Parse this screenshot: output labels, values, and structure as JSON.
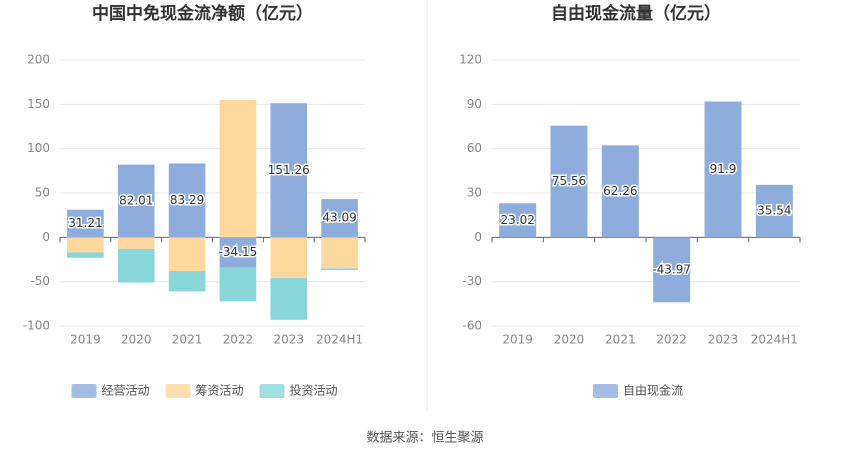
{
  "chart_data": [
    {
      "type": "bar",
      "stacked": true,
      "title": "中国中免现金流净额（亿元）",
      "categories": [
        "2019",
        "2020",
        "2021",
        "2022",
        "2023",
        "2024H1"
      ],
      "series": [
        {
          "name": "经营活动",
          "color": "#8eaddc",
          "labels": true,
          "values": [
            31.21,
            82.01,
            83.29,
            -34.15,
            151.26,
            43.09
          ]
        },
        {
          "name": "筹资活动",
          "color": "#fed89c",
          "labels": false,
          "values": [
            -17,
            -13,
            -38,
            155,
            -46,
            -35
          ]
        },
        {
          "name": "投资活动",
          "color": "#88d6d8",
          "labels": false,
          "values": [
            -6,
            -38,
            -23,
            -38,
            -47,
            -2
          ]
        }
      ],
      "ylim": [
        -100,
        200
      ],
      "yticks": [
        -100,
        -50,
        0,
        50,
        100,
        150,
        200
      ],
      "grid": true,
      "legend": "bottom"
    },
    {
      "type": "bar",
      "stacked": false,
      "title": "自由现金流量（亿元）",
      "categories": [
        "2019",
        "2020",
        "2021",
        "2022",
        "2023",
        "2024H1"
      ],
      "series": [
        {
          "name": "自由现金流",
          "color": "#8eaddc",
          "labels": true,
          "values": [
            23.02,
            75.56,
            62.26,
            -43.97,
            91.9,
            35.54
          ]
        }
      ],
      "ylim": [
        -60,
        120
      ],
      "yticks": [
        -60,
        -30,
        0,
        30,
        60,
        90,
        120
      ],
      "grid": true,
      "legend": "bottom"
    }
  ],
  "source": "数据来源：恒生聚源"
}
